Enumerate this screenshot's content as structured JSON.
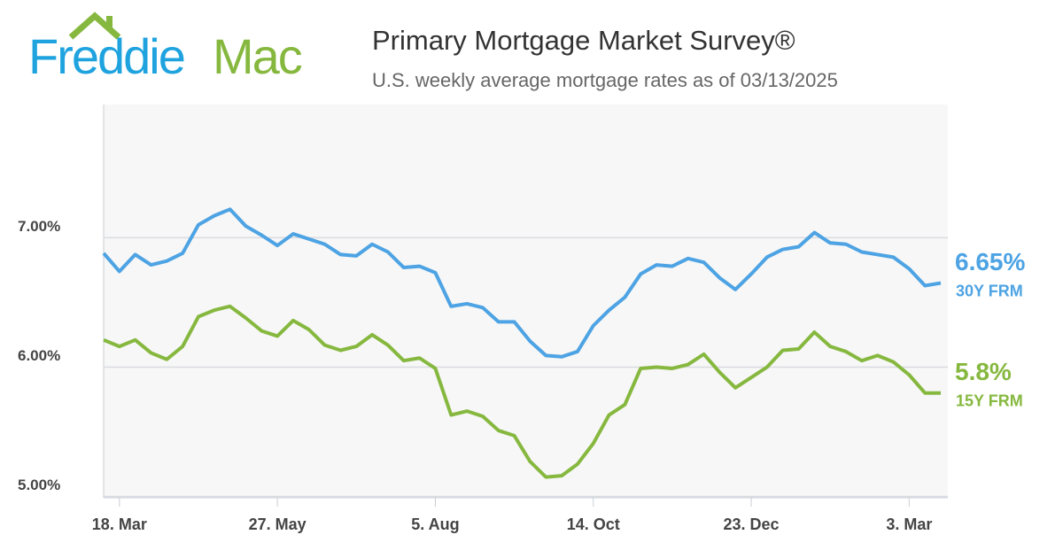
{
  "chart_data": {
    "type": "line",
    "logo": [
      "Freddie",
      "Mac"
    ],
    "title": "Primary Mortgage Market Survey®",
    "subtitle": "U.S. weekly average mortgage rates as of 03/13/2025",
    "categories": [
      null,
      "18. Mar",
      null,
      null,
      null,
      null,
      null,
      null,
      null,
      null,
      null,
      "27. May",
      null,
      null,
      null,
      null,
      null,
      null,
      null,
      null,
      null,
      "5. Aug",
      null,
      null,
      null,
      null,
      null,
      null,
      null,
      null,
      null,
      "14. Oct",
      null,
      null,
      null,
      null,
      null,
      null,
      null,
      null,
      null,
      "23. Dec",
      null,
      null,
      null,
      null,
      null,
      null,
      null,
      null,
      null,
      "3. Mar",
      null,
      null
    ],
    "series": [
      {
        "name": "30Y FRM",
        "color": "#4da3e3",
        "values": [
          6.88,
          6.74,
          6.87,
          6.79,
          6.82,
          6.88,
          7.1,
          7.17,
          7.22,
          7.09,
          7.02,
          6.94,
          7.03,
          6.99,
          6.95,
          6.87,
          6.86,
          6.95,
          6.89,
          6.77,
          6.78,
          6.73,
          6.47,
          6.49,
          6.46,
          6.35,
          6.35,
          6.2,
          6.09,
          6.08,
          6.12,
          6.32,
          6.44,
          6.54,
          6.72,
          6.79,
          6.78,
          6.84,
          6.81,
          6.69,
          6.6,
          6.72,
          6.85,
          6.91,
          6.93,
          7.04,
          6.96,
          6.95,
          6.89,
          6.87,
          6.85,
          6.76,
          6.63,
          6.65
        ],
        "value_labels": [
          null,
          null,
          null,
          null,
          null,
          null,
          null,
          null,
          null,
          null,
          null,
          null,
          null,
          null,
          null,
          null,
          null,
          null,
          null,
          null,
          null,
          null,
          null,
          null,
          null,
          null,
          null,
          null,
          null,
          null,
          null,
          null,
          null,
          null,
          null,
          null,
          null,
          null,
          null,
          null,
          null,
          null,
          null,
          null,
          null,
          null,
          null,
          null,
          null,
          null,
          null,
          null,
          null,
          "6.65%"
        ]
      },
      {
        "name": "15Y FRM",
        "color": "#86b83f",
        "values": [
          6.21,
          6.16,
          6.21,
          6.11,
          6.06,
          6.16,
          6.39,
          6.44,
          6.47,
          6.38,
          6.28,
          6.24,
          6.36,
          6.29,
          6.17,
          6.13,
          6.16,
          6.25,
          6.17,
          6.05,
          6.07,
          5.99,
          5.63,
          5.66,
          5.62,
          5.51,
          5.47,
          5.27,
          5.15,
          5.16,
          5.25,
          5.41,
          5.63,
          5.71,
          5.99,
          6.0,
          5.99,
          6.02,
          6.1,
          5.96,
          5.84,
          5.92,
          6.0,
          6.13,
          6.14,
          6.27,
          6.16,
          6.12,
          6.05,
          6.09,
          6.04,
          5.94,
          5.8,
          5.8
        ],
        "value_labels": [
          null,
          null,
          null,
          null,
          null,
          null,
          null,
          null,
          null,
          null,
          null,
          null,
          null,
          null,
          null,
          null,
          null,
          null,
          null,
          null,
          null,
          null,
          null,
          null,
          null,
          null,
          null,
          null,
          null,
          null,
          null,
          null,
          null,
          null,
          null,
          null,
          null,
          null,
          null,
          null,
          null,
          null,
          null,
          null,
          null,
          null,
          null,
          null,
          null,
          null,
          null,
          null,
          null,
          "5.8%"
        ]
      }
    ],
    "ylim": [
      4.99,
      8.03
    ],
    "yticks": [
      {
        "value": 5,
        "label": "5.00%"
      },
      {
        "value": 6,
        "label": "6.00%"
      },
      {
        "value": 7,
        "label": "7.00%"
      }
    ],
    "grid": true
  }
}
